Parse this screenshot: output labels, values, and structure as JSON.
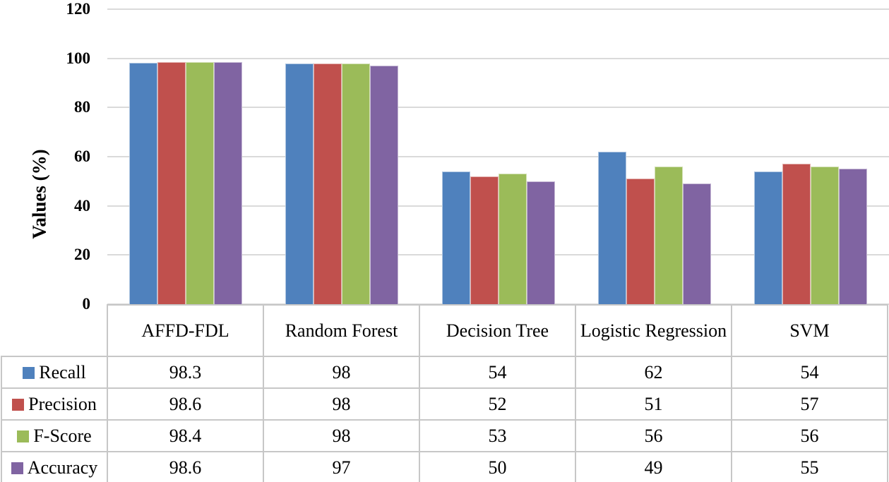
{
  "chart_data": {
    "type": "bar",
    "ylabel": "Values (%)",
    "xlabel": "",
    "ylim": [
      0,
      120
    ],
    "yticks": [
      0,
      20,
      40,
      60,
      80,
      100,
      120
    ],
    "grid": true,
    "legend_position": "data-table-left-column",
    "categories": [
      "AFFD-FDL",
      "Random Forest",
      "Decision Tree",
      "Logistic Regression",
      "SVM"
    ],
    "series": [
      {
        "name": "Recall",
        "color": "#4F81BD",
        "values": [
          98.3,
          98,
          54,
          62,
          54
        ]
      },
      {
        "name": "Precision",
        "color": "#C0504D",
        "values": [
          98.6,
          98,
          52,
          51,
          57
        ]
      },
      {
        "name": "F-Score",
        "color": "#9BBB59",
        "values": [
          98.4,
          98,
          53,
          56,
          56
        ]
      },
      {
        "name": "Accuracy",
        "color": "#8064A2",
        "values": [
          98.6,
          97,
          50,
          49,
          55
        ]
      }
    ],
    "colors": {
      "gridline": "#DADADA",
      "table_border": "#C7C7C7",
      "text": "#000000",
      "background": "#FFFFFF"
    }
  }
}
